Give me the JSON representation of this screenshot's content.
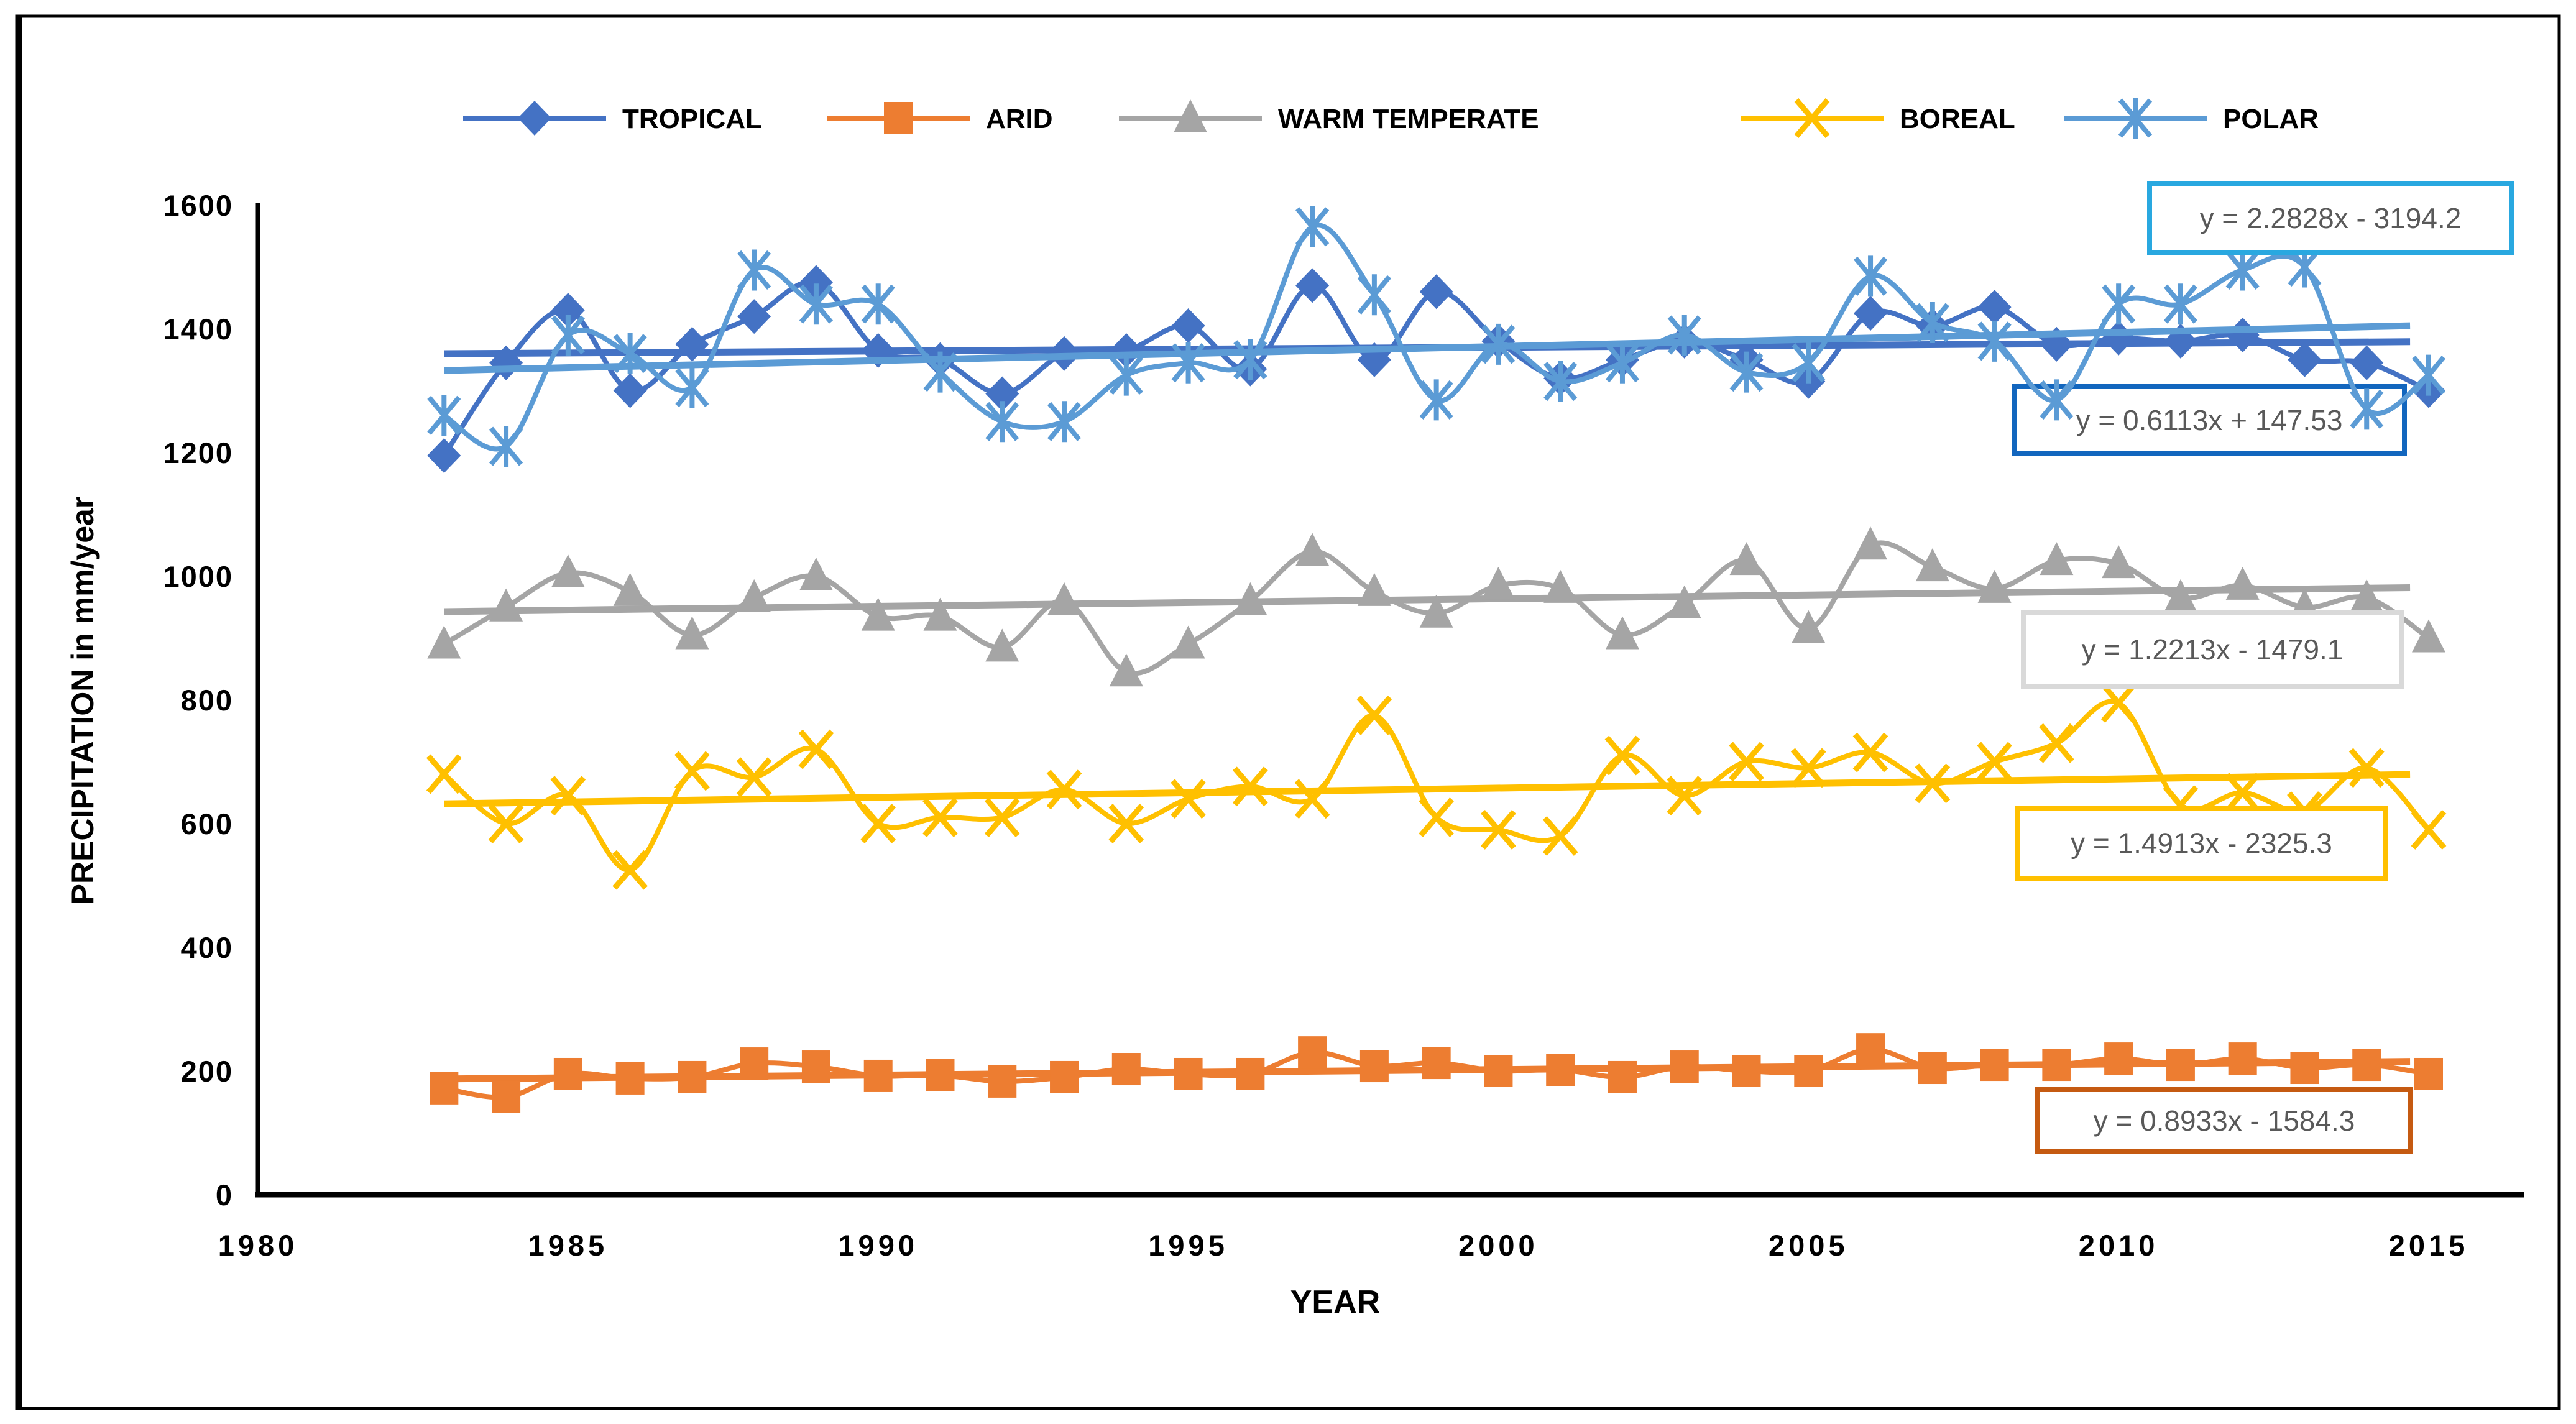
{
  "figure": {
    "background": "#ffffff",
    "border_color": "#000000"
  },
  "chart_data": {
    "type": "line",
    "title": "",
    "xlabel": "YEAR",
    "ylabel": "PRECIPITATION in mm/year",
    "grid": false,
    "legend_position": "top",
    "xlim": [
      1980,
      2016.5
    ],
    "ylim": [
      0,
      1600
    ],
    "xticks": [
      1980,
      1985,
      1990,
      1995,
      2000,
      2005,
      2010,
      2015
    ],
    "yticks": [
      0,
      200,
      400,
      600,
      800,
      1000,
      1200,
      1400,
      1600
    ],
    "x": [
      1983,
      1984,
      1985,
      1986,
      1987,
      1988,
      1989,
      1990,
      1991,
      1992,
      1993,
      1994,
      1995,
      1996,
      1997,
      1998,
      1999,
      2000,
      2001,
      2002,
      2003,
      2004,
      2005,
      2006,
      2007,
      2008,
      2009,
      2010,
      2011,
      2012,
      2013,
      2014,
      2015
    ],
    "equation_text_color": "#595959",
    "series": [
      {
        "name": "TROPICAL",
        "color": "#4472C4",
        "marker": "diamond",
        "values": [
          1195,
          1345,
          1430,
          1300,
          1375,
          1420,
          1475,
          1365,
          1350,
          1295,
          1360,
          1365,
          1405,
          1335,
          1470,
          1350,
          1460,
          1380,
          1320,
          1350,
          1380,
          1350,
          1315,
          1425,
          1405,
          1435,
          1375,
          1385,
          1380,
          1390,
          1350,
          1345,
          1300
        ],
        "trendline": {
          "label": "y = 0.6113x + 147.53",
          "slope": 0.6113,
          "intercept": 147.53,
          "box_color": "#1266BE"
        }
      },
      {
        "name": "ARID",
        "color": "#ED7D31",
        "marker": "square",
        "values": [
          172,
          158,
          195,
          188,
          190,
          212,
          207,
          192,
          193,
          183,
          190,
          203,
          195,
          195,
          230,
          208,
          213,
          200,
          202,
          190,
          207,
          200,
          200,
          235,
          205,
          210,
          210,
          220,
          210,
          220,
          205,
          210,
          195
        ],
        "trendline": {
          "label": "y = 0.8933x - 1584.3",
          "slope": 0.8933,
          "intercept": -1584.3,
          "box_color": "#C55A11"
        }
      },
      {
        "name": "WARM TEMPERATE",
        "color": "#A5A5A5",
        "marker": "triangle",
        "values": [
          890,
          950,
          1005,
          975,
          905,
          965,
          1000,
          935,
          935,
          885,
          960,
          845,
          890,
          960,
          1040,
          975,
          940,
          985,
          980,
          905,
          955,
          1025,
          915,
          1050,
          1015,
          980,
          1025,
          1020,
          965,
          985,
          950,
          965,
          900
        ],
        "trendline": {
          "label": "y = 1.2213x - 1479.1",
          "slope": 1.2213,
          "intercept": -1479.1,
          "box_color": "#D9D9D9"
        }
      },
      {
        "name": "BOREAL",
        "color": "#FFC000",
        "marker": "x",
        "values": [
          680,
          600,
          645,
          525,
          685,
          675,
          720,
          600,
          610,
          610,
          655,
          600,
          640,
          660,
          640,
          775,
          610,
          590,
          580,
          710,
          645,
          700,
          690,
          715,
          665,
          700,
          730,
          795,
          630,
          650,
          620,
          690,
          590
        ],
        "trendline": {
          "label": "y = 1.4913x - 2325.3",
          "slope": 1.4913,
          "intercept": -2325.3,
          "box_color": "#FFC000"
        }
      },
      {
        "name": "POLAR",
        "color": "#5B9BD5",
        "marker": "asterisk",
        "values": [
          1260,
          1210,
          1390,
          1360,
          1305,
          1495,
          1440,
          1440,
          1330,
          1250,
          1250,
          1325,
          1345,
          1350,
          1565,
          1455,
          1285,
          1375,
          1315,
          1345,
          1390,
          1330,
          1345,
          1485,
          1410,
          1380,
          1285,
          1440,
          1440,
          1495,
          1500,
          1270,
          1325
        ],
        "trendline": {
          "label": "y = 2.2828x - 3194.2",
          "slope": 2.2828,
          "intercept": -3194.2,
          "box_color": "#29A8E0"
        }
      }
    ]
  }
}
